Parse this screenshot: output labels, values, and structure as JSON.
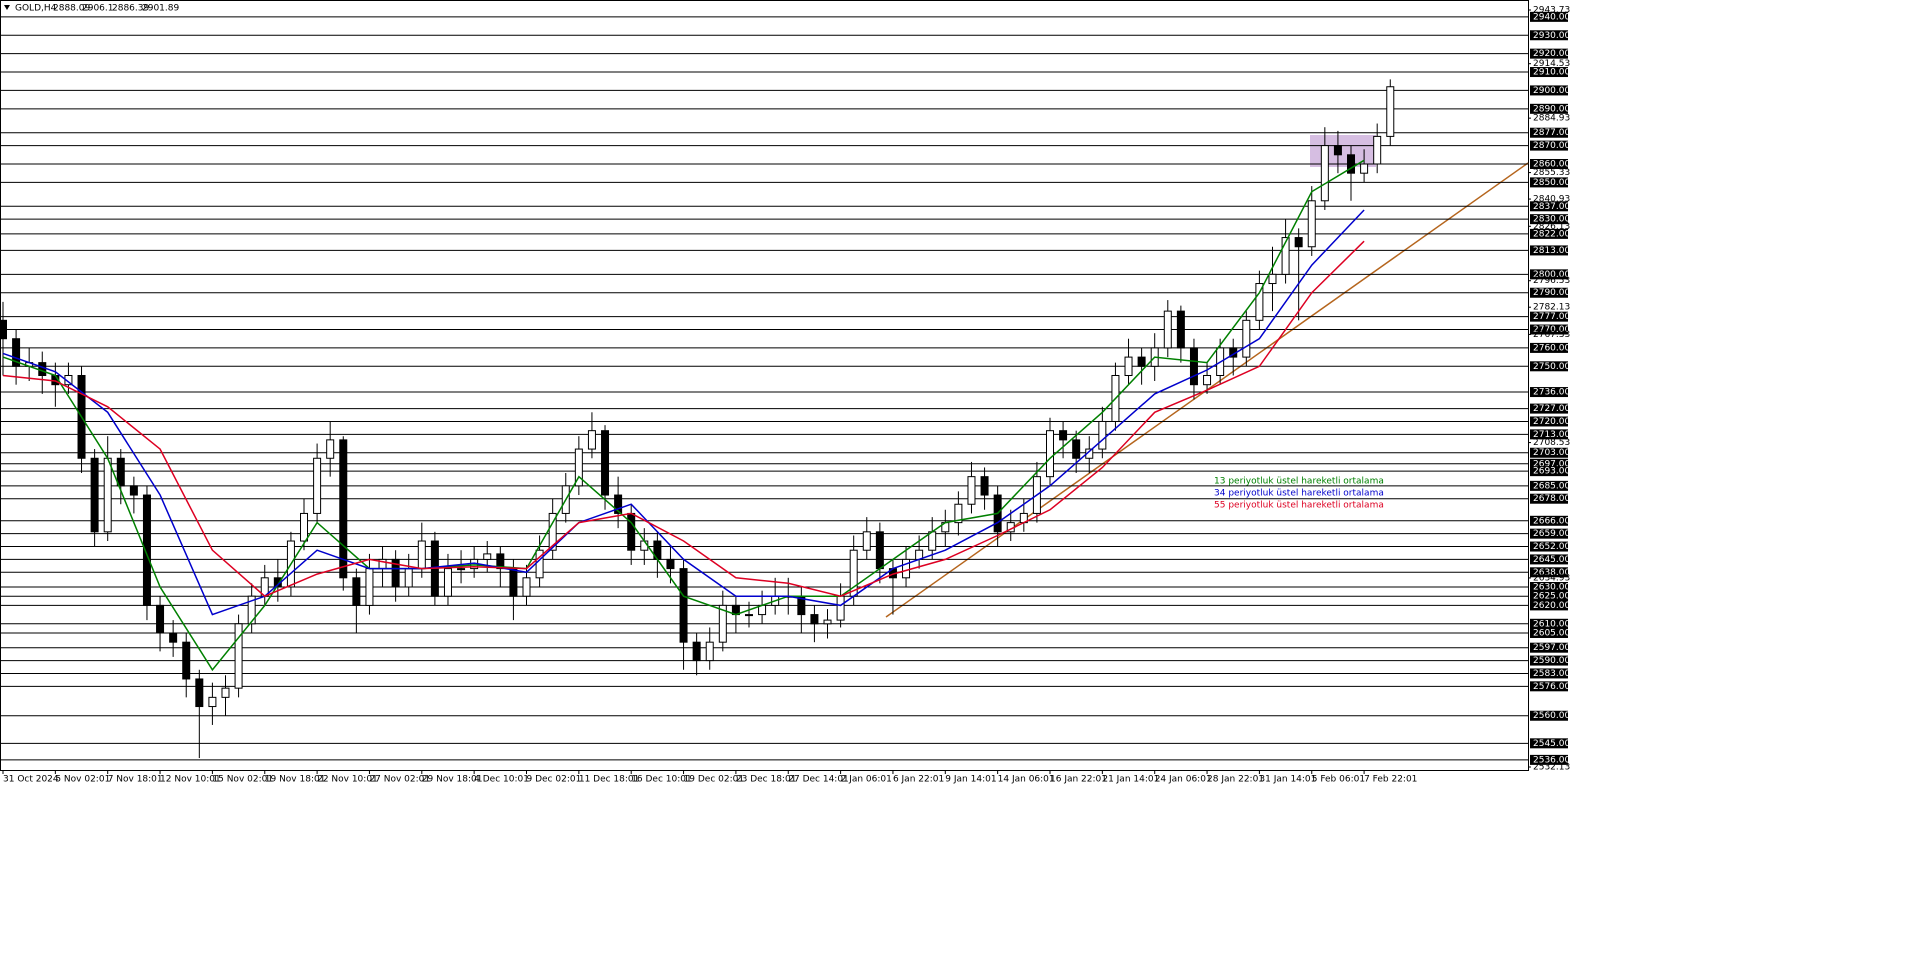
{
  "chart_data": {
    "type": "candlestick",
    "symbol": "GOLD,H4",
    "header_values": [
      2888.09,
      2906.1,
      2886.39,
      2901.89
    ],
    "ylim": [
      2532.13,
      2943.73
    ],
    "yticks": [
      2943.73,
      2914.53,
      2884.93,
      2855.33,
      2840.93,
      2826.13,
      2796.53,
      2782.13,
      2767.33,
      2708.53,
      2634.93,
      2532.13
    ],
    "levels": [
      {
        "value": 2940,
        "label": "2940.00"
      },
      {
        "value": 2930,
        "label": "2930.00"
      },
      {
        "value": 2920,
        "label": "2920.00"
      },
      {
        "value": 2910,
        "label": "2910.00"
      },
      {
        "value": 2900,
        "label": "2900.00"
      },
      {
        "value": 2890,
        "label": "2890.00"
      },
      {
        "value": 2877,
        "label": "2877.00"
      },
      {
        "value": 2870,
        "label": "2870.00"
      },
      {
        "value": 2860,
        "label": "2860.00"
      },
      {
        "value": 2850,
        "label": "2850.00"
      },
      {
        "value": 2837,
        "label": "2837.00"
      },
      {
        "value": 2830,
        "label": "2830.00"
      },
      {
        "value": 2822,
        "label": "2822.00"
      },
      {
        "value": 2813,
        "label": "2813.00"
      },
      {
        "value": 2800,
        "label": "2800.00"
      },
      {
        "value": 2790,
        "label": "2790.00"
      },
      {
        "value": 2777,
        "label": "2777.00"
      },
      {
        "value": 2770,
        "label": "2770.00"
      },
      {
        "value": 2760,
        "label": "2760.00"
      },
      {
        "value": 2750,
        "label": "2750.00"
      },
      {
        "value": 2736,
        "label": "2736.00"
      },
      {
        "value": 2727,
        "label": "2727.00"
      },
      {
        "value": 2720,
        "label": "2720.00"
      },
      {
        "value": 2713,
        "label": "2713.00"
      },
      {
        "value": 2703,
        "label": "2703.00"
      },
      {
        "value": 2697,
        "label": "2697.00"
      },
      {
        "value": 2693,
        "label": "2693.00"
      },
      {
        "value": 2685,
        "label": "2685.00"
      },
      {
        "value": 2678,
        "label": "2678.00"
      },
      {
        "value": 2666,
        "label": "2666.00"
      },
      {
        "value": 2659,
        "label": "2659.00"
      },
      {
        "value": 2652,
        "label": "2652.00"
      },
      {
        "value": 2645,
        "label": "2645.00"
      },
      {
        "value": 2638,
        "label": "2638.00"
      },
      {
        "value": 2630,
        "label": "2630.00"
      },
      {
        "value": 2625,
        "label": "2625.00"
      },
      {
        "value": 2620,
        "label": "2620.00"
      },
      {
        "value": 2610,
        "label": "2610.00"
      },
      {
        "value": 2605,
        "label": "2605.00"
      },
      {
        "value": 2597,
        "label": "2597.00"
      },
      {
        "value": 2590,
        "label": "2590.00"
      },
      {
        "value": 2583,
        "label": "2583.00"
      },
      {
        "value": 2576,
        "label": "2576.00"
      },
      {
        "value": 2560,
        "label": "2560.00"
      },
      {
        "value": 2545,
        "label": "2545.00"
      },
      {
        "value": 2536,
        "label": "2536.00"
      }
    ],
    "categories": [
      "31 Oct 2024",
      "5 Nov 02:01",
      "7 Nov 18:01",
      "12 Nov 10:01",
      "15 Nov 02:01",
      "19 Nov 18:01",
      "22 Nov 10:01",
      "27 Nov 02:01",
      "29 Nov 18:01",
      "4 Dec 10:01",
      "9 Dec 02:01",
      "11 Dec 18:01",
      "16 Dec 10:01",
      "19 Dec 02:01",
      "23 Dec 18:01",
      "27 Dec 14:01",
      "2 Jan 06:01",
      "6 Jan 22:01",
      "9 Jan 14:01",
      "14 Jan 06:01",
      "16 Jan 22:01",
      "21 Jan 14:01",
      "24 Jan 06:01",
      "28 Jan 22:01",
      "31 Jan 14:01",
      "5 Feb 06:01",
      "7 Feb 22:01"
    ],
    "candles": {
      "open": [
        2775,
        2765,
        2750,
        2752,
        2745,
        2740,
        2745,
        2700,
        2660,
        2700,
        2685,
        2680,
        2620,
        2605,
        2600,
        2580,
        2565,
        2570,
        2575,
        2610,
        2625,
        2635,
        2630,
        2655,
        2670,
        2700,
        2710,
        2635,
        2620,
        2640,
        2645,
        2630,
        2640,
        2655,
        2625,
        2640,
        2640,
        2645,
        2648,
        2640,
        2625,
        2635,
        2650,
        2670,
        2685,
        2705,
        2715,
        2680,
        2670,
        2650,
        2655,
        2645,
        2640,
        2600,
        2590,
        2600,
        2620,
        2615,
        2615,
        2620,
        2625,
        2625,
        2615,
        2610,
        2612,
        2625,
        2650,
        2660,
        2640,
        2635,
        2645,
        2650,
        2660,
        2665,
        2675,
        2690,
        2680,
        2660,
        2665,
        2670,
        2690,
        2715,
        2710,
        2700,
        2705,
        2720,
        2745,
        2755,
        2750,
        2760,
        2780,
        2760,
        2740,
        2745,
        2760,
        2755,
        2775,
        2795,
        2800,
        2820,
        2815,
        2840,
        2870,
        2865,
        2855,
        2860,
        2875
      ],
      "high": [
        2785,
        2770,
        2760,
        2758,
        2752,
        2752,
        2750,
        2705,
        2712,
        2705,
        2690,
        2685,
        2625,
        2612,
        2605,
        2585,
        2578,
        2582,
        2615,
        2632,
        2642,
        2645,
        2660,
        2678,
        2708,
        2720,
        2712,
        2640,
        2648,
        2652,
        2650,
        2648,
        2665,
        2660,
        2648,
        2650,
        2652,
        2655,
        2652,
        2645,
        2642,
        2658,
        2678,
        2692,
        2712,
        2725,
        2718,
        2690,
        2675,
        2662,
        2660,
        2652,
        2645,
        2605,
        2608,
        2628,
        2625,
        2622,
        2628,
        2635,
        2635,
        2630,
        2620,
        2618,
        2632,
        2658,
        2668,
        2665,
        2645,
        2652,
        2658,
        2668,
        2672,
        2682,
        2698,
        2695,
        2685,
        2672,
        2678,
        2698,
        2722,
        2720,
        2715,
        2712,
        2728,
        2752,
        2765,
        2760,
        2768,
        2786,
        2783,
        2765,
        2752,
        2765,
        2765,
        2780,
        2802,
        2815,
        2830,
        2825,
        2848,
        2880,
        2878,
        2870,
        2868,
        2882,
        2906
      ],
      "low": [
        2745,
        2740,
        2742,
        2735,
        2728,
        2735,
        2692,
        2652,
        2655,
        2675,
        2670,
        2612,
        2595,
        2592,
        2570,
        2537,
        2555,
        2560,
        2570,
        2605,
        2620,
        2622,
        2625,
        2650,
        2665,
        2690,
        2628,
        2605,
        2615,
        2630,
        2622,
        2625,
        2635,
        2620,
        2620,
        2632,
        2635,
        2638,
        2630,
        2612,
        2620,
        2630,
        2645,
        2665,
        2680,
        2700,
        2672,
        2662,
        2642,
        2642,
        2635,
        2632,
        2585,
        2582,
        2585,
        2595,
        2605,
        2608,
        2610,
        2615,
        2615,
        2605,
        2600,
        2602,
        2608,
        2620,
        2645,
        2632,
        2615,
        2630,
        2640,
        2645,
        2652,
        2658,
        2670,
        2672,
        2652,
        2655,
        2660,
        2665,
        2685,
        2700,
        2692,
        2692,
        2700,
        2715,
        2740,
        2740,
        2742,
        2755,
        2752,
        2732,
        2735,
        2740,
        2745,
        2750,
        2770,
        2780,
        2795,
        2775,
        2810,
        2835,
        2855,
        2840,
        2850,
        2855,
        2870
      ],
      "close": [
        2765,
        2750,
        2752,
        2745,
        2740,
        2745,
        2700,
        2660,
        2700,
        2685,
        2680,
        2620,
        2605,
        2600,
        2580,
        2565,
        2570,
        2575,
        2610,
        2625,
        2635,
        2630,
        2655,
        2670,
        2700,
        2710,
        2635,
        2620,
        2640,
        2645,
        2630,
        2640,
        2655,
        2625,
        2640,
        2640,
        2645,
        2648,
        2640,
        2625,
        2635,
        2650,
        2670,
        2685,
        2705,
        2715,
        2680,
        2670,
        2650,
        2655,
        2645,
        2640,
        2600,
        2590,
        2600,
        2620,
        2615,
        2615,
        2620,
        2625,
        2625,
        2615,
        2610,
        2612,
        2625,
        2650,
        2660,
        2640,
        2635,
        2645,
        2650,
        2660,
        2665,
        2675,
        2690,
        2680,
        2660,
        2665,
        2670,
        2690,
        2715,
        2710,
        2700,
        2705,
        2720,
        2745,
        2755,
        2750,
        2760,
        2780,
        2760,
        2740,
        2745,
        2760,
        2755,
        2775,
        2795,
        2800,
        2820,
        2815,
        2840,
        2870,
        2865,
        2855,
        2860,
        2875,
        2902
      ]
    },
    "series": [
      {
        "name": "13 periyotluk üstel hareketli ortalama",
        "color": "#008000",
        "values": [
          2755,
          2745,
          2700,
          2630,
          2585,
          2620,
          2665,
          2640,
          2640,
          2642,
          2640,
          2690,
          2665,
          2625,
          2615,
          2625,
          2625,
          2645,
          2665,
          2670,
          2700,
          2725,
          2755,
          2752,
          2790,
          2845,
          2862
        ]
      },
      {
        "name": "34 periyotluk üstel hareketli ortalama",
        "color": "#0000cc",
        "values": [
          2757,
          2747,
          2725,
          2680,
          2615,
          2625,
          2650,
          2640,
          2640,
          2643,
          2638,
          2665,
          2675,
          2645,
          2625,
          2625,
          2620,
          2640,
          2650,
          2665,
          2685,
          2710,
          2735,
          2748,
          2765,
          2805,
          2835
        ]
      },
      {
        "name": "55 periyotluk üstel hareketli ortalama",
        "color": "#dd0022",
        "values": [
          2745,
          2742,
          2728,
          2705,
          2650,
          2625,
          2637,
          2645,
          2640,
          2641,
          2640,
          2665,
          2670,
          2655,
          2635,
          2632,
          2625,
          2637,
          2645,
          2658,
          2672,
          2695,
          2725,
          2737,
          2750,
          2790,
          2818
        ]
      }
    ]
  }
}
